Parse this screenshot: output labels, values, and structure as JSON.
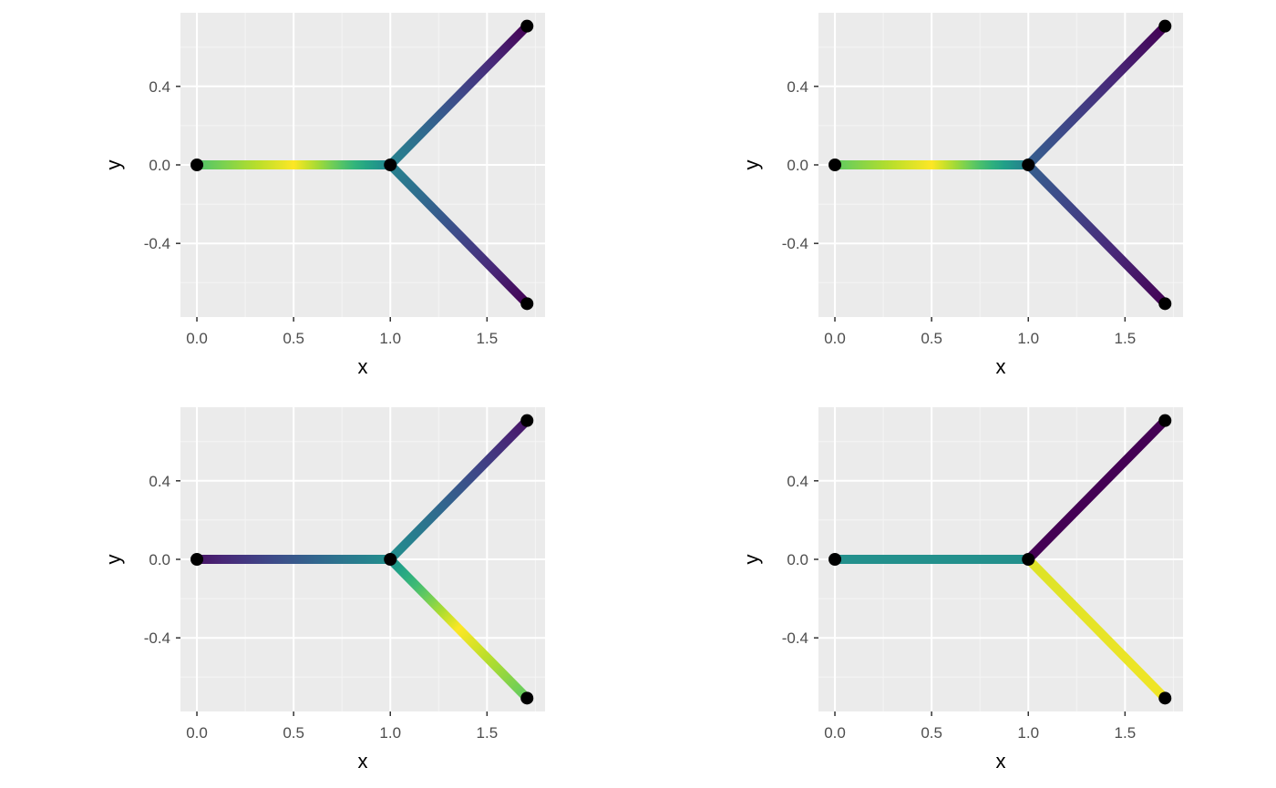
{
  "chart_data": [
    {
      "type": "line",
      "panel": "top-left",
      "xlabel": "x",
      "ylabel": "y",
      "x_ticks": [
        "0.0",
        "0.5",
        "1.0",
        "1.5"
      ],
      "y_ticks": [
        "-0.4",
        "0.0",
        "0.4"
      ],
      "xlim": [
        -0.085,
        1.8
      ],
      "ylim": [
        -0.775,
        0.775
      ],
      "grid": true,
      "colormap": "viridis",
      "nodes": [
        {
          "x": 0.0,
          "y": 0.0
        },
        {
          "x": 1.0,
          "y": 0.0
        },
        {
          "x": 1.707,
          "y": 0.707
        },
        {
          "x": 1.707,
          "y": -0.707
        }
      ],
      "edges": [
        {
          "from": 0,
          "to": 1,
          "color_stops": [
            [
              0.0,
              0.72
            ],
            [
              0.5,
              1.0
            ],
            [
              1.0,
              0.45
            ]
          ]
        },
        {
          "from": 1,
          "to": 2,
          "color_stops": [
            [
              0.0,
              0.45
            ],
            [
              1.0,
              0.0
            ]
          ]
        },
        {
          "from": 1,
          "to": 3,
          "color_stops": [
            [
              0.0,
              0.45
            ],
            [
              1.0,
              0.0
            ]
          ]
        }
      ]
    },
    {
      "type": "line",
      "panel": "top-right",
      "xlabel": "x",
      "ylabel": "y",
      "x_ticks": [
        "0.0",
        "0.5",
        "1.0",
        "1.5"
      ],
      "y_ticks": [
        "-0.4",
        "0.0",
        "0.4"
      ],
      "xlim": [
        -0.085,
        1.8
      ],
      "ylim": [
        -0.775,
        0.775
      ],
      "grid": true,
      "colormap": "viridis",
      "nodes": [
        {
          "x": 0.0,
          "y": 0.0
        },
        {
          "x": 1.0,
          "y": 0.0
        },
        {
          "x": 1.707,
          "y": 0.707
        },
        {
          "x": 1.707,
          "y": -0.707
        }
      ],
      "edges": [
        {
          "from": 0,
          "to": 1,
          "color_stops": [
            [
              0.0,
              0.75
            ],
            [
              0.5,
              1.0
            ],
            [
              1.0,
              0.42
            ]
          ]
        },
        {
          "from": 1,
          "to": 2,
          "color_stops": [
            [
              0.0,
              0.3
            ],
            [
              1.0,
              0.0
            ]
          ]
        },
        {
          "from": 1,
          "to": 3,
          "color_stops": [
            [
              0.0,
              0.3
            ],
            [
              1.0,
              0.0
            ]
          ]
        }
      ]
    },
    {
      "type": "line",
      "panel": "bottom-left",
      "xlabel": "x",
      "ylabel": "y",
      "x_ticks": [
        "0.0",
        "0.5",
        "1.0",
        "1.5"
      ],
      "y_ticks": [
        "-0.4",
        "0.0",
        "0.4"
      ],
      "xlim": [
        -0.085,
        1.8
      ],
      "ylim": [
        -0.775,
        0.775
      ],
      "grid": true,
      "colormap": "viridis",
      "nodes": [
        {
          "x": 0.0,
          "y": 0.0
        },
        {
          "x": 1.0,
          "y": 0.0
        },
        {
          "x": 1.707,
          "y": 0.707
        },
        {
          "x": 1.707,
          "y": -0.707
        }
      ],
      "edges": [
        {
          "from": 0,
          "to": 1,
          "color_stops": [
            [
              0.0,
              0.05
            ],
            [
              1.0,
              0.5
            ]
          ]
        },
        {
          "from": 1,
          "to": 2,
          "color_stops": [
            [
              0.0,
              0.5
            ],
            [
              1.0,
              0.05
            ]
          ]
        },
        {
          "from": 1,
          "to": 3,
          "color_stops": [
            [
              0.0,
              0.5
            ],
            [
              0.5,
              1.0
            ],
            [
              1.0,
              0.75
            ]
          ]
        }
      ]
    },
    {
      "type": "line",
      "panel": "bottom-right",
      "xlabel": "x",
      "ylabel": "y",
      "x_ticks": [
        "0.0",
        "0.5",
        "1.0",
        "1.5"
      ],
      "y_ticks": [
        "-0.4",
        "0.0",
        "0.4"
      ],
      "xlim": [
        -0.085,
        1.8
      ],
      "ylim": [
        -0.775,
        0.775
      ],
      "grid": true,
      "colormap": "viridis",
      "nodes": [
        {
          "x": 0.0,
          "y": 0.0
        },
        {
          "x": 1.0,
          "y": 0.0
        },
        {
          "x": 1.707,
          "y": 0.707
        },
        {
          "x": 1.707,
          "y": -0.707
        }
      ],
      "edges": [
        {
          "from": 0,
          "to": 1,
          "color_stops": [
            [
              0.0,
              0.5
            ],
            [
              1.0,
              0.5
            ]
          ]
        },
        {
          "from": 1,
          "to": 2,
          "color_stops": [
            [
              0.0,
              0.0
            ],
            [
              1.0,
              0.0
            ]
          ]
        },
        {
          "from": 1,
          "to": 3,
          "color_stops": [
            [
              0.0,
              0.95
            ],
            [
              1.0,
              0.98
            ]
          ]
        }
      ]
    }
  ],
  "colors": {
    "panel_background": "#ebebeb",
    "grid_major": "#ffffff",
    "grid_minor": "#f5f5f5",
    "point": "#000000",
    "tick_label": "#4d4d4d",
    "axis_title": "#000000",
    "viridis": [
      "#440154",
      "#482878",
      "#3e4989",
      "#31688e",
      "#26828e",
      "#1f9e89",
      "#35b779",
      "#6ece58",
      "#b5de2b",
      "#fde725"
    ]
  }
}
